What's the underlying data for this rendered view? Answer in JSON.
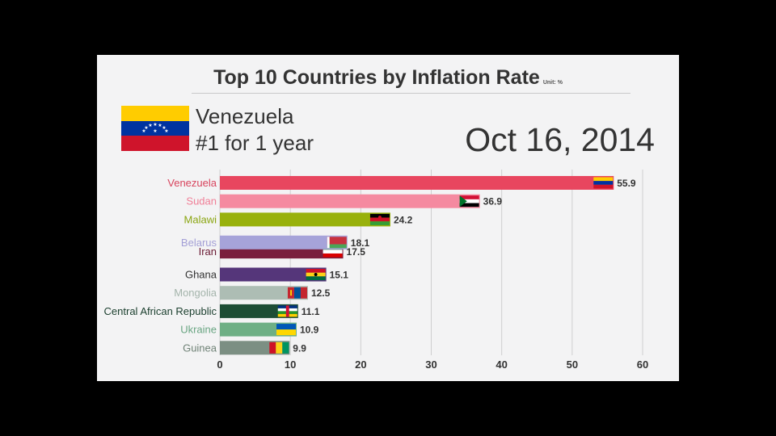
{
  "header": {
    "title": "Top 10 Countries by Inflation Rate",
    "unit": "Unit: %"
  },
  "leader": {
    "name": "Venezuela",
    "streak": "#1 for 1 year",
    "flag": "venezuela-flag"
  },
  "date": "Oct 16, 2014",
  "chart_data": {
    "type": "bar",
    "orientation": "horizontal",
    "title": "Top 10 Countries by Inflation Rate",
    "xlim": [
      0,
      60
    ],
    "xticks": [
      0,
      10,
      20,
      30,
      40,
      50,
      60
    ],
    "grid": true,
    "bars": [
      {
        "name": "Venezuela",
        "value": 55.9,
        "label": "55.9",
        "color": "#e8465f",
        "label_color": "#d8455e",
        "flag": "venezuela",
        "rank": 1
      },
      {
        "name": "Sudan",
        "value": 36.9,
        "label": "36.9",
        "color": "#f58aa0",
        "label_color": "#f07f97",
        "flag": "sudan",
        "rank": 2
      },
      {
        "name": "Malawi",
        "value": 24.2,
        "label": "24.2",
        "color": "#98b10c",
        "label_color": "#8aa510",
        "flag": "malawi",
        "rank": 3
      },
      {
        "name": "Belarus",
        "value": 18.1,
        "label": "18.1",
        "color": "#a6a3d9",
        "label_color": "#a39fd6",
        "flag": "belarus",
        "rank": 4.25
      },
      {
        "name": "Iran",
        "value": 17.5,
        "label": "17.5",
        "color": "#7a1f3d",
        "label_color": "#6a1a34",
        "flag": "iran",
        "rank": 4.75
      },
      {
        "name": "Ghana",
        "value": 15.1,
        "label": "15.1",
        "color": "#55367a",
        "label_color": "#333333",
        "flag": "ghana",
        "rank": 6
      },
      {
        "name": "Mongolia",
        "value": 12.5,
        "label": "12.5",
        "color": "#adbdb4",
        "label_color": "#a4b4ab",
        "flag": "mongolia",
        "rank": 7
      },
      {
        "name": "Central African Republic",
        "value": 11.1,
        "label": "11.1",
        "color": "#1d4d35",
        "label_color": "#1b3f2e",
        "flag": "central-african-republic",
        "rank": 8
      },
      {
        "name": "Ukraine",
        "value": 10.9,
        "label": "10.9",
        "color": "#6eaf85",
        "label_color": "#69a582",
        "flag": "ukraine",
        "rank": 9
      },
      {
        "name": "Guinea",
        "value": 9.9,
        "label": "9.9",
        "color": "#7c8f83",
        "label_color": "#6f8276",
        "flag": "guinea",
        "rank": 10
      }
    ]
  }
}
